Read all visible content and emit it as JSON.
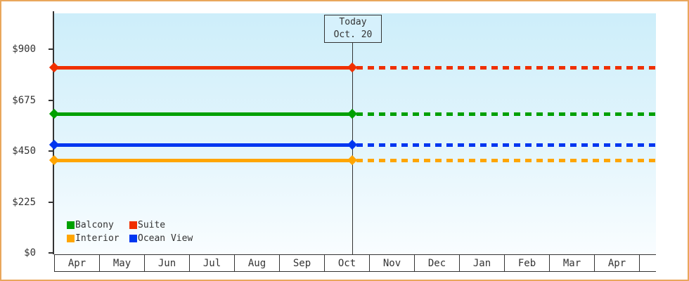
{
  "window": {
    "background_color": "#ffffff",
    "border_color": "#e9a75c",
    "plot_gradient_top": "#cdeefa",
    "plot_gradient_bottom": "#f9fdff",
    "axis_color": "#333333",
    "text_color": "#333333"
  },
  "today_annotation": {
    "line1": "Today",
    "line2": "Oct. 20"
  },
  "chart_data": {
    "type": "line",
    "title": "",
    "xlabel": "",
    "ylabel": "",
    "x_categories": [
      "Apr",
      "May",
      "Jun",
      "Jul",
      "Aug",
      "Sep",
      "Oct",
      "Nov",
      "Dec",
      "Jan",
      "Feb",
      "Mar",
      "Apr"
    ],
    "x_trailing_empty_cell": true,
    "today_marker": {
      "label_line1": "Today",
      "label_line2": "Oct. 20",
      "month": "Oct",
      "day": 20
    },
    "y_axis": {
      "tick_labels": [
        "$900",
        "$675",
        "$450",
        "$225",
        "$0"
      ],
      "tick_values": [
        900,
        675,
        450,
        225,
        0
      ],
      "ylim": [
        0,
        1060
      ],
      "grid": false
    },
    "series": [
      {
        "name": "Suite",
        "color": "#f03000",
        "value": 820,
        "solid_before_today": true,
        "dashed_after_today": true
      },
      {
        "name": "Balcony",
        "color": "#00a000",
        "value": 615,
        "solid_before_today": true,
        "dashed_after_today": true
      },
      {
        "name": "Ocean View",
        "color": "#0036f0",
        "value": 477,
        "solid_before_today": true,
        "dashed_after_today": true
      },
      {
        "name": "Interior",
        "color": "#ffa500",
        "value": 410,
        "solid_before_today": true,
        "dashed_after_today": true
      }
    ],
    "legend": {
      "position": "bottom-left-inside-plot",
      "rows": [
        [
          "Balcony",
          "Suite"
        ],
        [
          "Interior",
          "Ocean View"
        ]
      ]
    }
  }
}
